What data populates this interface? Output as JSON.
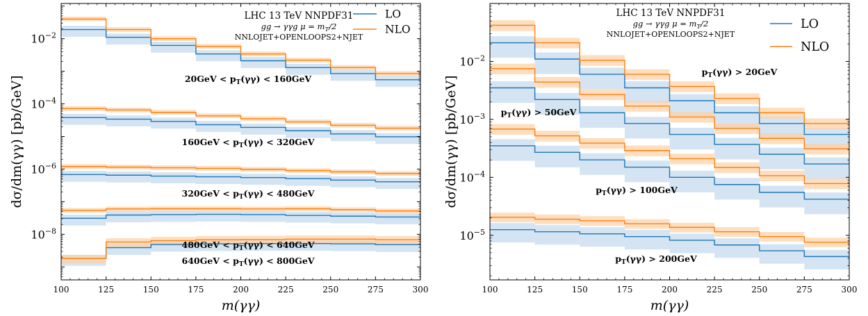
{
  "figure": {
    "colors": {
      "LO": "#1f77b4",
      "NLO": "#ff7f0e"
    }
  },
  "chart_data": [
    {
      "type": "line",
      "step": "post",
      "xlabel": "m(γγ)",
      "ylabel": "dσ/dm(γγ) [pb/GeV]",
      "xlim": [
        100,
        300
      ],
      "ylim": [
        4e-10,
        0.12
      ],
      "yscale": "log",
      "xticks": [
        "100",
        "125",
        "150",
        "175",
        "200",
        "225",
        "250",
        "275",
        "300"
      ],
      "yticks": [
        {
          "value": 0.01,
          "base": "10",
          "exp": "−2"
        },
        {
          "value": 0.0001,
          "base": "10",
          "exp": "−4"
        },
        {
          "value": 1e-06,
          "base": "10",
          "exp": "−6"
        },
        {
          "value": 1e-08,
          "base": "10",
          "exp": "−8"
        }
      ],
      "info": [
        "LHC 13 TeV NNPDF31",
        "gg → γγg   μ = m",
        "T",
        "/2",
        "NNLOJET+OPENLOOPS2+NJET"
      ],
      "legend": {
        "placement": "top-right",
        "entries": [
          "LO",
          "NLO"
        ]
      },
      "x_edges": [
        100,
        125,
        150,
        175,
        200,
        225,
        250,
        275,
        300
      ],
      "groups": [
        {
          "label": [
            "20GeV < p",
            "T",
            "(γγ) < 160GeV"
          ],
          "LO": {
            "values": [
              0.019,
              0.011,
              0.0062,
              0.0034,
              0.0021,
              0.0013,
              0.00085,
              0.00055
            ],
            "band": [
              0.6,
              1.3
            ]
          },
          "NLO": {
            "values": [
              0.04,
              0.019,
              0.01,
              0.0058,
              0.0034,
              0.0022,
              0.0013,
              0.00085
            ],
            "band": [
              0.85,
              1.18
            ]
          }
        },
        {
          "label": [
            "160GeV < p",
            "T",
            "(γγ) < 320GeV"
          ],
          "LO": {
            "values": [
              3.8e-05,
              3.4e-05,
              2.9e-05,
              2.3e-05,
              1.9e-05,
              1.5e-05,
              1.2e-05,
              9.8e-06
            ],
            "band": [
              0.6,
              1.3
            ]
          },
          "NLO": {
            "values": [
              7.2e-05,
              6.5e-05,
              5.5e-05,
              4.3e-05,
              3.5e-05,
              2.8e-05,
              2.2e-05,
              1.8e-05
            ],
            "band": [
              0.85,
              1.18
            ]
          }
        },
        {
          "label": [
            "320GeV < p",
            "T",
            "(γγ) < 480GeV"
          ],
          "LO": {
            "values": [
              6.8e-07,
              6.5e-07,
              6.1e-07,
              5.8e-07,
              5.5e-07,
              5.1e-07,
              4.6e-07,
              4.1e-07
            ],
            "band": [
              0.6,
              1.3
            ]
          },
          "NLO": {
            "values": [
              1.2e-06,
              1.15e-06,
              1.1e-06,
              1.05e-06,
              9.8e-07,
              9e-07,
              8.2e-07,
              7.3e-07
            ],
            "band": [
              0.85,
              1.18
            ]
          }
        },
        {
          "label": [
            "480GeV < p",
            "T",
            "(γγ) < 640GeV"
          ],
          "LO": {
            "values": [
              3.1e-08,
              3.9e-08,
              4e-08,
              4.1e-08,
              4e-08,
              3.8e-08,
              3.6e-08,
              3.4e-08
            ],
            "band": [
              0.6,
              1.3
            ]
          },
          "NLO": {
            "values": [
              5.4e-08,
              6e-08,
              6.1e-08,
              6.1e-08,
              6e-08,
              6.1e-08,
              5.7e-08,
              5.2e-08
            ],
            "band": [
              0.85,
              1.18
            ]
          }
        },
        {
          "label": [
            "640GeV < p",
            "T",
            "(γγ) < 800GeV"
          ],
          "LO": {
            "values": [
              1.8e-09,
              3.9e-09,
              4.9e-09,
              5.1e-09,
              5.2e-09,
              5.2e-09,
              5.1e-09,
              4.8e-09
            ],
            "band": [
              0.6,
              1.3
            ]
          },
          "NLO": {
            "values": [
              1.8e-09,
              5.8e-09,
              6.4e-09,
              6.8e-09,
              6.9e-09,
              7.1e-09,
              7.1e-09,
              6.8e-09
            ],
            "band": [
              0.7,
              1.3
            ]
          }
        }
      ]
    },
    {
      "type": "line",
      "step": "post",
      "xlabel": "m(γγ)",
      "ylabel": "dσ/dm(γγ) [pb/GeV]",
      "xlim": [
        100,
        300
      ],
      "ylim": [
        1.7e-06,
        0.1
      ],
      "yscale": "log",
      "xticks": [
        "100",
        "125",
        "150",
        "175",
        "200",
        "225",
        "250",
        "275",
        "300"
      ],
      "yticks": [
        {
          "value": 0.01,
          "base": "10",
          "exp": "−2"
        },
        {
          "value": 0.001,
          "base": "10",
          "exp": "−3"
        },
        {
          "value": 0.0001,
          "base": "10",
          "exp": "−4"
        },
        {
          "value": 1e-05,
          "base": "10",
          "exp": "−5"
        }
      ],
      "info": [
        "LHC 13 TeV NNPDF31",
        "gg → γγg   μ = m",
        "T",
        "/2",
        "NNLOJET+OPENLOOPS2+NJET"
      ],
      "legend": {
        "placement": "top-right",
        "entries": [
          "LO",
          "NLO"
        ]
      },
      "x_edges": [
        100,
        125,
        150,
        175,
        200,
        225,
        250,
        275,
        300
      ],
      "groups": [
        {
          "label": [
            "p",
            "T",
            "(γγ) > 20GeV"
          ],
          "LO": {
            "values": [
              0.021,
              0.011,
              0.006,
              0.0035,
              0.0021,
              0.0013,
              0.00085,
              0.00055
            ],
            "band": [
              0.55,
              1.3
            ]
          },
          "NLO": {
            "values": [
              0.042,
              0.021,
              0.0105,
              0.006,
              0.0037,
              0.0023,
              0.0013,
              0.00085
            ],
            "band": [
              0.8,
              1.22
            ]
          }
        },
        {
          "label": [
            "p",
            "T",
            "(γγ) > 50GeV"
          ],
          "LO": {
            "values": [
              0.0035,
              0.0022,
              0.0013,
              0.00085,
              0.00055,
              0.00037,
              0.00025,
              0.00017
            ],
            "band": [
              0.55,
              1.3
            ]
          },
          "NLO": {
            "values": [
              0.0075,
              0.0044,
              0.0027,
              0.0017,
              0.0011,
              0.0007,
              0.00047,
              0.00031
            ],
            "band": [
              0.8,
              1.22
            ]
          }
        },
        {
          "label": [
            "p",
            "T",
            "(γγ) > 100GeV"
          ],
          "LO": {
            "values": [
              0.00035,
              0.00027,
              0.0002,
              0.00015,
              0.0001,
              7.5e-05,
              5.5e-05,
              4.2e-05
            ],
            "band": [
              0.55,
              1.3
            ]
          },
          "NLO": {
            "values": [
              0.00068,
              0.00052,
              0.00039,
              0.00029,
              0.00021,
              0.000148,
              0.000107,
              7.8e-05
            ],
            "band": [
              0.8,
              1.22
            ]
          }
        },
        {
          "label": [
            "p",
            "T",
            "(γγ) > 200GeV"
          ],
          "LO": {
            "values": [
              1.25e-05,
              1.15e-05,
              1.06e-05,
              9.5e-06,
              8.2e-06,
              6.8e-06,
              5.4e-06,
              4.3e-06
            ],
            "band": [
              0.6,
              1.3
            ]
          },
          "NLO": {
            "values": [
              2.05e-05,
              1.9e-05,
              1.78e-05,
              1.58e-05,
              1.37e-05,
              1.15e-05,
              9.5e-06,
              7.6e-06
            ],
            "band": [
              0.82,
              1.2
            ]
          }
        }
      ]
    }
  ]
}
